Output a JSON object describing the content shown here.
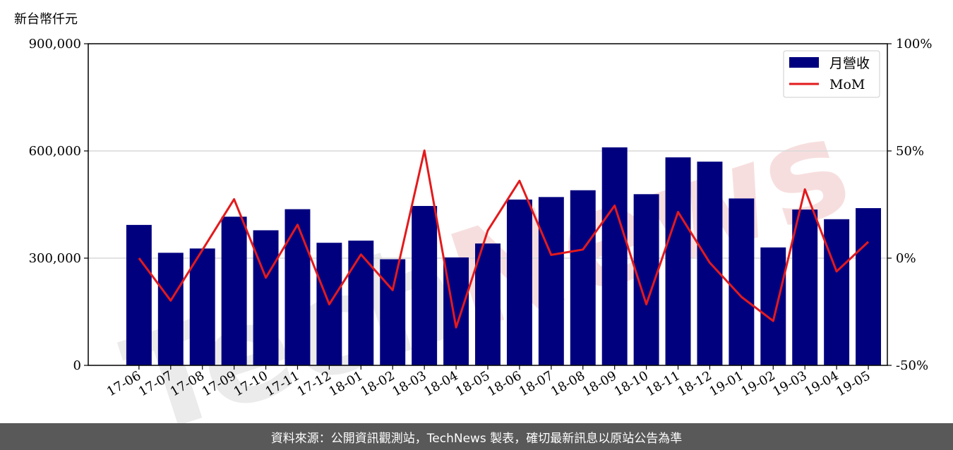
{
  "chart_data": {
    "type": "bar",
    "ylabel": "新台幣仟元",
    "categories": [
      "17-06",
      "17-07",
      "17-08",
      "17-09",
      "17-10",
      "17-11",
      "17-12",
      "18-01",
      "18-02",
      "18-03",
      "18-04",
      "18-05",
      "18-06",
      "18-07",
      "18-08",
      "18-09",
      "18-10",
      "18-11",
      "18-12",
      "19-01",
      "19-02",
      "19-03",
      "19-04",
      "19-05"
    ],
    "series": [
      {
        "name": "月營收",
        "type": "bar",
        "axis": "left",
        "color": "#00007f",
        "values": [
          393000,
          315000,
          327000,
          416000,
          378000,
          437000,
          343000,
          349000,
          297000,
          446000,
          302000,
          341000,
          464000,
          471000,
          490000,
          610000,
          479000,
          582000,
          570000,
          467000,
          330000,
          436000,
          409000,
          440000
        ]
      },
      {
        "name": "MoM",
        "type": "line",
        "axis": "right",
        "color": "#e31a1c",
        "unit": "%",
        "values": [
          0,
          -19.8,
          3.8,
          27.5,
          -9.1,
          15.6,
          -21.5,
          1.7,
          -14.9,
          50.2,
          -32.3,
          12.9,
          36.1,
          1.5,
          4.0,
          24.5,
          -21.5,
          21.5,
          -2.1,
          -18.1,
          -29.3,
          32.1,
          -6.2,
          7.6
        ]
      }
    ],
    "y_left": {
      "min": 0,
      "max": 900000,
      "ticks": [
        0,
        300000,
        600000,
        900000
      ],
      "tick_labels": [
        "0",
        "300,000",
        "600,000",
        "900,000"
      ]
    },
    "y_right": {
      "min": -50,
      "max": 100,
      "ticks": [
        -50,
        0,
        50,
        100
      ],
      "tick_labels": [
        "-50%",
        "0%",
        "50%",
        "100%"
      ]
    },
    "grid": "horizontal at major left-axis ticks",
    "legend_position": "top-right"
  },
  "watermark": "TechNews",
  "footer": {
    "text": "資料來源：公開資訊觀測站，TechNews 製表，確切最新訊息以原站公告為準"
  }
}
